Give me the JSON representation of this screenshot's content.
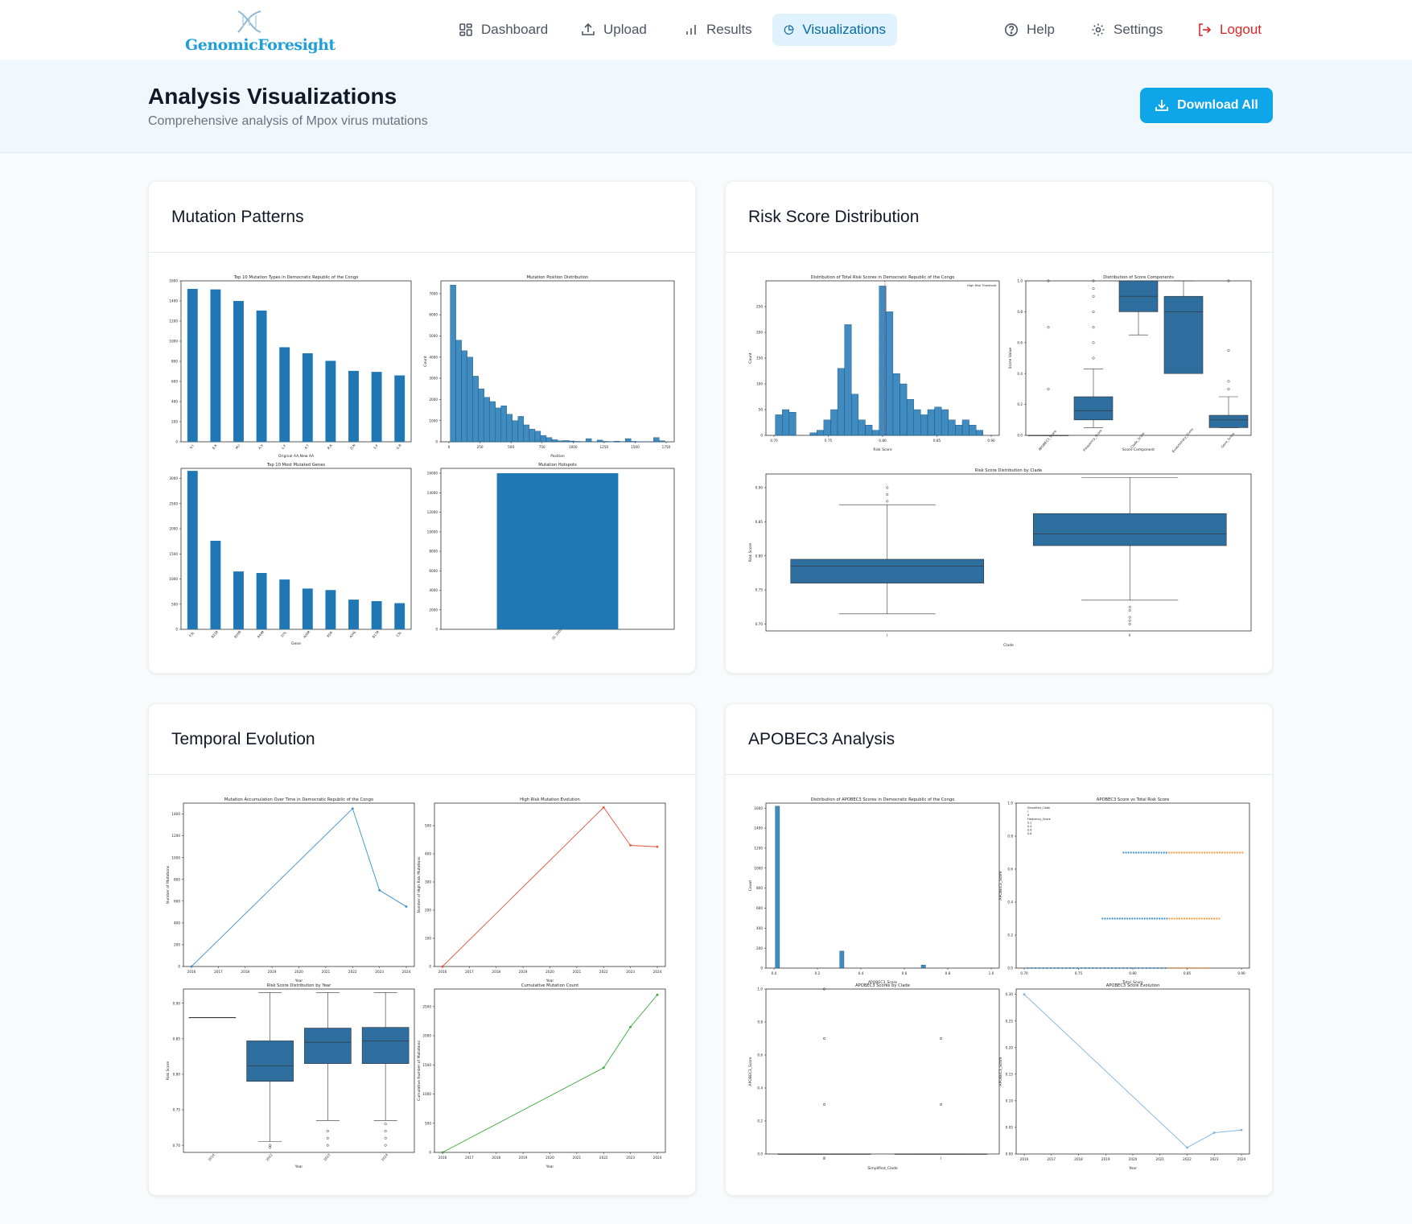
{
  "nav": {
    "logo_text": "GenomicForesight",
    "items": [
      {
        "label": "Dashboard",
        "icon": "dashboard-icon"
      },
      {
        "label": "Upload",
        "icon": "upload-icon"
      },
      {
        "label": "Results",
        "icon": "bar-chart-icon"
      },
      {
        "label": "Visualizations",
        "icon": "pie-chart-icon",
        "active": true
      }
    ],
    "help": "Help",
    "settings": "Settings",
    "logout": "Logout"
  },
  "header": {
    "title": "Analysis Visualizations",
    "subtitle": "Comprehensive analysis of Mpox virus mutations",
    "download_label": "Download All"
  },
  "cards": [
    {
      "title": "Mutation Patterns"
    },
    {
      "title": "Risk Score Distribution"
    },
    {
      "title": "Temporal Evolution"
    },
    {
      "title": "APOBEC3 Analysis"
    }
  ],
  "colors": {
    "accent": "#0ea5e9",
    "bar": "#1f77b4",
    "logout": "#dc2626",
    "active_bg": "#e0f2fe"
  },
  "chart_data": [
    {
      "type": "bar",
      "title": "Top 10 Mutation Types in Democratic Republic of the Congo",
      "xlabel": "Original AA,New AA",
      "ylabel": "",
      "categories": [
        "V,I",
        "E,K",
        "M,I",
        "A,V",
        "L,F",
        "A,T",
        "R,K",
        "D,N",
        "S,F",
        "G,R"
      ],
      "values": [
        1520,
        1515,
        1400,
        1305,
        940,
        880,
        805,
        705,
        695,
        660
      ],
      "ylim": [
        0,
        1600
      ],
      "yticks": [
        0,
        200,
        400,
        600,
        800,
        1000,
        1200,
        1400,
        1600
      ]
    },
    {
      "type": "bar",
      "title": "Mutation Position Distribution",
      "xlabel": "Position",
      "ylabel": "Count",
      "values": [
        7400,
        4800,
        4300,
        4000,
        3100,
        2500,
        2100,
        1900,
        1600,
        1700,
        1300,
        1000,
        1200,
        800,
        600,
        500,
        300,
        200,
        100,
        50,
        60,
        40,
        20,
        10,
        150,
        10,
        80,
        20,
        10,
        30,
        10,
        150,
        20,
        10,
        5,
        10,
        200,
        50
      ],
      "xticks": [
        "0",
        "250",
        "500",
        "750",
        "1000",
        "1250",
        "1500",
        "1750"
      ],
      "ylim": [
        0,
        7600
      ],
      "yticks": [
        0,
        1000,
        2000,
        3000,
        4000,
        5000,
        6000,
        7000
      ]
    },
    {
      "type": "bar",
      "title": "Top 10 Most Mutated Genes",
      "xlabel": "Gene",
      "ylabel": "",
      "categories": [
        "F3L",
        "B21R",
        "B20R",
        "A44R",
        "D7L",
        "A26R",
        "B5R",
        "A34L",
        "B17R",
        "C3L"
      ],
      "values": [
        3150,
        1760,
        1150,
        1120,
        990,
        810,
        780,
        590,
        560,
        520
      ],
      "ylim": [
        0,
        3200
      ],
      "yticks": [
        0,
        500,
        1000,
        1500,
        2000,
        2500,
        3000
      ]
    },
    {
      "type": "bar",
      "title": "Mutation Hotspots",
      "categories": [
        "(0, 200]"
      ],
      "values": [
        16000
      ],
      "ylim": [
        0,
        16500
      ],
      "yticks": [
        0,
        2000,
        4000,
        6000,
        8000,
        10000,
        12000,
        14000,
        16000
      ]
    },
    {
      "type": "bar",
      "title": "Distribution of Total Risk Scores in Democratic Republic of the Congo",
      "xlabel": "Risk Score",
      "ylabel": "Count",
      "legend": "High Risk Threshold",
      "threshold": 0.815,
      "xticks": [
        "0.70",
        "0.75",
        "0.80",
        "0.85",
        "0.90"
      ],
      "xlim": [
        0.69,
        0.92
      ],
      "values": [
        40,
        50,
        45,
        0,
        0,
        5,
        10,
        30,
        50,
        130,
        215,
        80,
        30,
        20,
        10,
        290,
        240,
        120,
        100,
        70,
        50,
        40,
        50,
        55,
        50,
        30,
        20,
        30,
        20,
        10,
        0
      ],
      "ylim": [
        0,
        300
      ],
      "yticks": [
        0,
        50,
        100,
        150,
        200,
        250
      ]
    },
    {
      "type": "box",
      "title": "Distribution of Score Components",
      "xlabel": "Score Component",
      "ylabel": "Score Value",
      "categories": [
        "APOBEC3_Score",
        "Frequency_Score",
        "Clade_Score",
        "Evolutionary_Score",
        "Gene_Score"
      ],
      "ylim": [
        0,
        1.0
      ],
      "yticks": [
        "0.0",
        "0.2",
        "0.4",
        "0.6",
        "0.8",
        "1.0"
      ]
    },
    {
      "type": "box",
      "title": "Risk Score Distribution by Clade",
      "xlabel": "Clade",
      "ylabel": "Risk Score",
      "categories": [
        "I",
        "II"
      ],
      "ylim": [
        0.69,
        0.92
      ],
      "yticks": [
        "0.70",
        "0.75",
        "0.80",
        "0.85",
        "0.90"
      ]
    },
    {
      "type": "line",
      "title": "Mutation Accumulation Over Time in Democratic Republic of the Congo",
      "xlabel": "Year",
      "ylabel": "Number of Mutations",
      "x": [
        2016,
        2022,
        2023,
        2024
      ],
      "y": [
        0,
        1450,
        700,
        550
      ],
      "xticks": [
        2016,
        2017,
        2018,
        2019,
        2020,
        2021,
        2022,
        2023,
        2024
      ],
      "ylim": [
        0,
        1500
      ],
      "yticks": [
        0,
        200,
        400,
        600,
        800,
        1000,
        1200,
        1400
      ]
    },
    {
      "type": "line",
      "title": "High Risk Mutation Evolution",
      "xlabel": "Year",
      "ylabel": "Number of High Risk Mutations",
      "x": [
        2016,
        2022,
        2023,
        2024
      ],
      "y": [
        0,
        565,
        430,
        425
      ],
      "xticks": [
        2016,
        2017,
        2018,
        2019,
        2020,
        2021,
        2022,
        2023,
        2024
      ],
      "ylim": [
        0,
        580
      ],
      "yticks": [
        0,
        100,
        200,
        300,
        400,
        500
      ]
    },
    {
      "type": "box",
      "title": "Risk Score Distribution by Year",
      "xlabel": "Year",
      "ylabel": "Risk Score",
      "categories": [
        "2016",
        "2022",
        "2023",
        "2024"
      ],
      "ylim": [
        0.69,
        0.92
      ],
      "yticks": [
        "0.70",
        "0.75",
        "0.80",
        "0.85",
        "0.90"
      ]
    },
    {
      "type": "line",
      "title": "Cumulative Mutation Count",
      "xlabel": "Year",
      "ylabel": "Cumulative Number of Mutations",
      "x": [
        2016,
        2022,
        2023,
        2024
      ],
      "y": [
        0,
        1450,
        2150,
        2700
      ],
      "xticks": [
        2016,
        2017,
        2018,
        2019,
        2020,
        2021,
        2022,
        2023,
        2024
      ],
      "ylim": [
        0,
        2800
      ],
      "yticks": [
        0,
        500,
        1000,
        1500,
        2000,
        2500
      ]
    },
    {
      "type": "bar",
      "title": "Distribution of APOBEC3 Scores in Democratic Republic of the Congo",
      "xlabel": "APOBEC3_Score",
      "ylabel": "Count",
      "values": [
        1620,
        0,
        0,
        0,
        0,
        0,
        0,
        0,
        0,
        0,
        0,
        0,
        0,
        0,
        0,
        170,
        0,
        0,
        0,
        0,
        0,
        0,
        0,
        0,
        0,
        0,
        0,
        0,
        0,
        0,
        0,
        0,
        0,
        0,
        30,
        0,
        0,
        0,
        0,
        0,
        0,
        0,
        0,
        0,
        0,
        0,
        0,
        0,
        0,
        0
      ],
      "xticks": [
        "0.0",
        "0.2",
        "0.4",
        "0.6",
        "0.8",
        "1.0"
      ],
      "ylim": [
        0,
        1650
      ],
      "yticks": [
        0,
        200,
        400,
        600,
        800,
        1000,
        1200,
        1400,
        1600
      ]
    },
    {
      "type": "scatter",
      "title": "APOBEC3 Score vs Total Risk Score",
      "xlabel": "Total_Score",
      "ylabel": "APOBEC3_Score",
      "legend": [
        "Simplified_Clade",
        "I",
        "II",
        "Frequency_Score",
        "0.2",
        "0.4",
        "0.6",
        "0.8"
      ],
      "xticks": [
        "0.70",
        "0.75",
        "0.80",
        "0.85",
        "0.90"
      ],
      "yticks": [
        "0.0",
        "0.2",
        "0.4",
        "0.6",
        "0.8",
        "1.0"
      ]
    },
    {
      "type": "box",
      "title": "APOBEC3 Scores by Clade",
      "xlabel": "Simplified_Clade",
      "ylabel": "APOBEC3_Score",
      "categories": [
        "III",
        "I"
      ],
      "yticks": [
        "0.0",
        "0.2",
        "0.4",
        "0.6",
        "0.8",
        "1.0"
      ]
    },
    {
      "type": "line",
      "title": "APOBEC3 Score Evolution",
      "xlabel": "Year",
      "ylabel": "APOBEC3_Score",
      "x": [
        2016,
        2022,
        2023,
        2024
      ],
      "y": [
        0.3,
        0.012,
        0.04,
        0.045
      ],
      "xticks": [
        2016,
        2017,
        2018,
        2019,
        2020,
        2021,
        2022,
        2023,
        2024
      ],
      "ylim": [
        0,
        0.31
      ],
      "yticks": [
        "0.00",
        "0.05",
        "0.10",
        "0.15",
        "0.20",
        "0.25",
        "0.30"
      ]
    }
  ]
}
